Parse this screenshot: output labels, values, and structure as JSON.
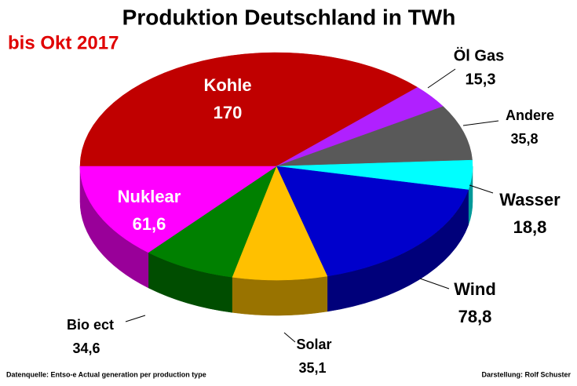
{
  "chart_data": {
    "type": "pie",
    "title": "Produktion Deutschland  in TWh",
    "subtitle": "bis Okt 2017",
    "categories": [
      "Kohle",
      "Öl Gas",
      "Andere",
      "Wasser",
      "Wind",
      "Solar",
      "Bio ect",
      "Nuklear"
    ],
    "values": [
      170,
      15.3,
      35.8,
      18.8,
      78.8,
      35.1,
      34.6,
      61.6
    ],
    "value_labels": [
      "170",
      "15,3",
      "35,8",
      "18,8",
      "78,8",
      "35,1",
      "34,6",
      "61,6"
    ],
    "colors": [
      "#c00000",
      "#b020ff",
      "#595959",
      "#00ffff",
      "#0000cc",
      "#ffc000",
      "#008000",
      "#ff00ff"
    ],
    "source": "Datenquelle: Entso-e  Actual generation per production type",
    "author": "Darstellung: Rolf Schuster"
  }
}
